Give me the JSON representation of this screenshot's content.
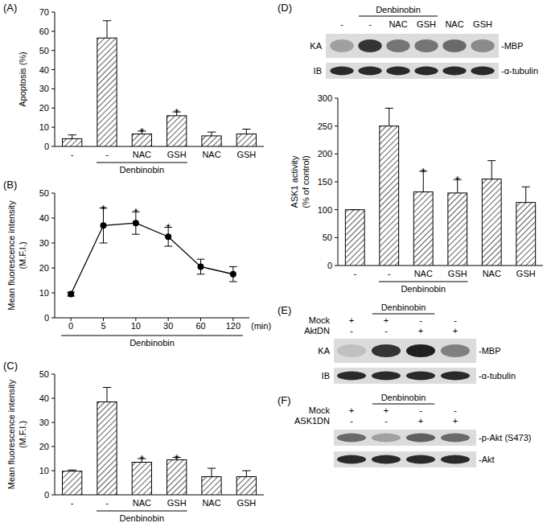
{
  "chart_data": [
    {
      "type": "bar",
      "title": "(A)",
      "y_label": [
        "Apoptosis (%)"
      ],
      "categories": [
        "-",
        "-",
        "NAC",
        "GSH",
        "NAC",
        "GSH"
      ],
      "values": [
        4,
        56.5,
        6.5,
        16,
        5.5,
        6.5
      ],
      "errors": [
        2,
        9,
        1.5,
        2,
        2,
        2.5
      ],
      "significance": [
        null,
        null,
        "*",
        "*",
        null,
        null
      ],
      "annotations": [
        {
          "text": "Denbinobin",
          "from": 1,
          "to": 3
        }
      ],
      "ylim": [
        0,
        70
      ],
      "yticks": [
        0,
        10,
        20,
        30,
        40,
        50,
        60,
        70
      ],
      "color": "#000000"
    },
    {
      "type": "line",
      "title": "(B)",
      "y_label": [
        "Mean fluorescence intensity",
        "(M.F.I.)"
      ],
      "x_label": "(min)",
      "categories": [
        "0",
        "5",
        "10",
        "30",
        "60",
        "120"
      ],
      "values": [
        9.5,
        37,
        38,
        32.5,
        20.5,
        17.5
      ],
      "errors": [
        0.8,
        7,
        4.5,
        3.8,
        3,
        3
      ],
      "significance": [
        null,
        "*",
        "*",
        "*",
        null,
        null
      ],
      "annotations": [
        {
          "text": "Denbinobin",
          "from": 0,
          "to": 5
        }
      ],
      "ylim": [
        0,
        50
      ],
      "yticks": [
        0,
        10,
        20,
        30,
        40,
        50
      ],
      "color": "#000000",
      "marker": "circle"
    },
    {
      "type": "bar",
      "title": "(C)",
      "y_label": [
        "Mean fluorescence intensity",
        "(M.F.I.)"
      ],
      "categories": [
        "-",
        "-",
        "NAC",
        "GSH",
        "NAC",
        "GSH"
      ],
      "values": [
        9.8,
        38.5,
        13.5,
        14.5,
        7.5,
        7.5
      ],
      "errors": [
        0.5,
        6,
        1.5,
        1,
        3.5,
        2.5
      ],
      "significance": [
        null,
        null,
        "*",
        "*",
        null,
        null
      ],
      "annotations": [
        {
          "text": "Denbinobin",
          "from": 1,
          "to": 3
        }
      ],
      "ylim": [
        0,
        50
      ],
      "yticks": [
        0,
        10,
        20,
        30,
        40,
        50
      ],
      "color": "#000000"
    },
    {
      "type": "bar",
      "y_label": [
        "ASK1 activity",
        "(% of control)"
      ],
      "categories": [
        "-",
        "-",
        "NAC",
        "GSH",
        "NAC",
        "GSH"
      ],
      "values": [
        100,
        250,
        132,
        130,
        155,
        113
      ],
      "errors": [
        0,
        32,
        37,
        24,
        33,
        28
      ],
      "significance": [
        null,
        null,
        "*",
        "*",
        null,
        null
      ],
      "annotations": [
        {
          "text": "Denbinobin",
          "from": 1,
          "to": 3
        }
      ],
      "ylim": [
        0,
        300
      ],
      "yticks": [
        0,
        50,
        100,
        150,
        200,
        250,
        300
      ],
      "color": "#000000"
    }
  ],
  "blots": [
    {
      "label": "(D)",
      "group": {
        "text": "Denbinobin",
        "from": 1,
        "to": 3
      },
      "conditions": [
        {
          "signs": [
            "-",
            "-",
            "NAC",
            "GSH",
            "NAC",
            "GSH"
          ]
        }
      ],
      "rows": [
        {
          "method": "KA",
          "name": "-MBP",
          "bands": [
            0.35,
            0.85,
            0.55,
            0.55,
            0.6,
            0.45
          ]
        },
        {
          "method": "IB",
          "name": "-α-tubulin",
          "bands": [
            0.9,
            0.9,
            0.9,
            0.9,
            0.9,
            0.9
          ]
        }
      ]
    },
    {
      "label": "(E)",
      "group": {
        "text": "Denbinobin",
        "from": 1,
        "to": 2
      },
      "conditions": [
        {
          "name": "Mock",
          "signs": [
            "+",
            "+",
            "-",
            "-"
          ]
        },
        {
          "name": "AktDN",
          "signs": [
            "-",
            "-",
            "+",
            "+"
          ]
        }
      ],
      "rows": [
        {
          "method": "KA",
          "name": "-MBP",
          "bands": [
            0.2,
            0.85,
            0.95,
            0.5
          ]
        },
        {
          "method": "IB",
          "name": "-α-tubulin",
          "bands": [
            0.9,
            0.9,
            0.9,
            0.9
          ]
        }
      ]
    },
    {
      "label": "(F)",
      "group": {
        "text": "Denbinobin",
        "from": 1,
        "to": 2
      },
      "conditions": [
        {
          "name": "Mock",
          "signs": [
            "+",
            "+",
            "-",
            "-"
          ]
        },
        {
          "name": "ASK1DN",
          "signs": [
            "-",
            "-",
            "+",
            "+"
          ]
        }
      ],
      "rows": [
        {
          "name": "-p-Akt (S473)",
          "bands": [
            0.6,
            0.35,
            0.65,
            0.6
          ]
        },
        {
          "name": "-Akt",
          "bands": [
            0.9,
            0.9,
            0.9,
            0.9
          ]
        }
      ]
    }
  ]
}
